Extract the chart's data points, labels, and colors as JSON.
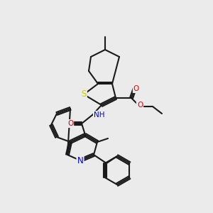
{
  "background_color": "#ebebeb",
  "bond_color": "#1a1a1a",
  "bond_width": 1.5,
  "atom_colors": {
    "N": "#0000ee",
    "O": "#dd0000",
    "S": "#cccc00",
    "C": "#1a1a1a",
    "H": "#555555"
  },
  "font_size": 7.5,
  "title": ""
}
